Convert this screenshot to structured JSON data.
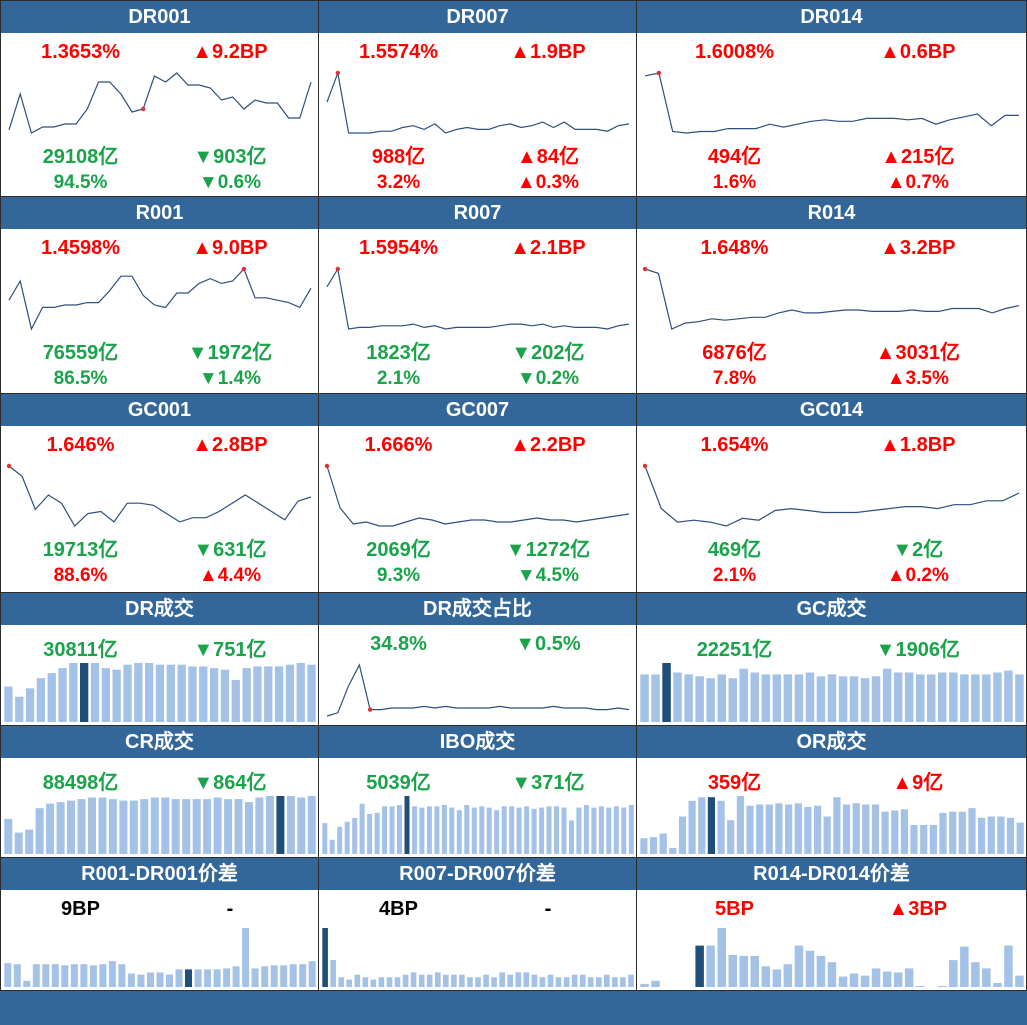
{
  "colors": {
    "header": "#336699",
    "up": "#ff0000",
    "down": "#1aa34a",
    "neutral": "#000000",
    "line": "#2f4f7f",
    "bar": "#a4c2e8",
    "bar_highlight": "#1f4e79",
    "marker": "#e03030"
  },
  "panels": [
    {
      "id": "dr001",
      "title": "DR001",
      "kind": "line",
      "highlight": 12,
      "rows": [
        [
          "1.3653%",
          "red",
          "▲9.2BP",
          "red"
        ],
        [
          "29108亿",
          "green",
          "▼903亿",
          "green"
        ],
        [
          "94.5%",
          "green",
          "▼0.6%",
          "green"
        ]
      ],
      "chart_data": {
        "type": "line",
        "values": [
          1.21,
          1.33,
          1.2,
          1.22,
          1.22,
          1.23,
          1.23,
          1.28,
          1.37,
          1.37,
          1.33,
          1.27,
          1.28,
          1.39,
          1.37,
          1.4,
          1.36,
          1.36,
          1.35,
          1.31,
          1.32,
          1.28,
          1.31,
          1.3,
          1.3,
          1.25,
          1.25,
          1.37
        ]
      }
    },
    {
      "id": "dr007",
      "title": "DR007",
      "kind": "line",
      "highlight": 1,
      "rows": [
        [
          "1.5574%",
          "red",
          "▲1.9BP",
          "red"
        ],
        [
          "988亿",
          "red",
          "▲84亿",
          "red"
        ],
        [
          "3.2%",
          "red",
          "▲0.3%",
          "red"
        ]
      ],
      "chart_data": {
        "type": "line",
        "values": [
          1.4,
          1.56,
          1.23,
          1.23,
          1.23,
          1.24,
          1.24,
          1.26,
          1.27,
          1.25,
          1.28,
          1.23,
          1.25,
          1.26,
          1.25,
          1.25,
          1.27,
          1.28,
          1.26,
          1.27,
          1.29,
          1.26,
          1.29,
          1.25,
          1.25,
          1.25,
          1.24,
          1.27,
          1.28
        ]
      }
    },
    {
      "id": "dr014",
      "title": "DR014",
      "kind": "line",
      "highlight": 1,
      "rows": [
        [
          "1.6008%",
          "red",
          "▲0.6BP",
          "red"
        ],
        [
          "494亿",
          "red",
          "▲215亿",
          "red"
        ],
        [
          "1.6%",
          "red",
          "▲0.7%",
          "red"
        ]
      ],
      "chart_data": {
        "type": "line",
        "values": [
          1.58,
          1.6,
          1.2,
          1.19,
          1.2,
          1.2,
          1.22,
          1.22,
          1.22,
          1.25,
          1.23,
          1.25,
          1.27,
          1.28,
          1.27,
          1.27,
          1.29,
          1.29,
          1.29,
          1.28,
          1.29,
          1.25,
          1.28,
          1.3,
          1.32,
          1.24,
          1.31,
          1.31
        ]
      }
    },
    {
      "id": "r001",
      "title": "R001",
      "kind": "line",
      "highlight": 21,
      "rows": [
        [
          "1.4598%",
          "red",
          "▲9.0BP",
          "red"
        ],
        [
          "76559亿",
          "green",
          "▼1972亿",
          "green"
        ],
        [
          "86.5%",
          "green",
          "▼1.4%",
          "green"
        ]
      ],
      "chart_data": {
        "type": "line",
        "values": [
          1.33,
          1.41,
          1.21,
          1.3,
          1.3,
          1.31,
          1.31,
          1.32,
          1.32,
          1.37,
          1.43,
          1.43,
          1.35,
          1.31,
          1.3,
          1.36,
          1.36,
          1.4,
          1.42,
          1.4,
          1.41,
          1.46,
          1.34,
          1.34,
          1.33,
          1.32,
          1.3,
          1.38
        ]
      }
    },
    {
      "id": "r007",
      "title": "R007",
      "kind": "line",
      "highlight": 1,
      "rows": [
        [
          "1.5954%",
          "red",
          "▲2.1BP",
          "red"
        ],
        [
          "1823亿",
          "green",
          "▼202亿",
          "green"
        ],
        [
          "2.1%",
          "green",
          "▼0.2%",
          "green"
        ]
      ],
      "chart_data": {
        "type": "line",
        "values": [
          1.49,
          1.6,
          1.23,
          1.24,
          1.24,
          1.25,
          1.25,
          1.25,
          1.26,
          1.24,
          1.25,
          1.23,
          1.24,
          1.24,
          1.24,
          1.24,
          1.25,
          1.26,
          1.26,
          1.25,
          1.26,
          1.24,
          1.25,
          1.24,
          1.24,
          1.24,
          1.23,
          1.25,
          1.26
        ]
      }
    },
    {
      "id": "r014",
      "title": "R014",
      "kind": "line",
      "highlight": 0,
      "rows": [
        [
          "1.648%",
          "red",
          "▲3.2BP",
          "red"
        ],
        [
          "6876亿",
          "red",
          "▲3031亿",
          "red"
        ],
        [
          "7.8%",
          "red",
          "▲3.5%",
          "red"
        ]
      ],
      "chart_data": {
        "type": "line",
        "values": [
          1.65,
          1.62,
          1.24,
          1.28,
          1.29,
          1.31,
          1.3,
          1.31,
          1.32,
          1.32,
          1.35,
          1.37,
          1.35,
          1.35,
          1.36,
          1.37,
          1.37,
          1.36,
          1.36,
          1.36,
          1.37,
          1.36,
          1.36,
          1.38,
          1.38,
          1.38,
          1.35,
          1.38,
          1.4
        ]
      }
    },
    {
      "id": "gc001",
      "title": "GC001",
      "kind": "line",
      "highlight": 0,
      "rows": [
        [
          "1.646%",
          "red",
          "▲2.8BP",
          "red"
        ],
        [
          "19713亿",
          "green",
          "▼631亿",
          "green"
        ],
        [
          "88.6%",
          "red",
          "▲4.4%",
          "red"
        ]
      ],
      "chart_data": {
        "type": "line",
        "values": [
          1.64,
          1.59,
          1.43,
          1.5,
          1.46,
          1.35,
          1.41,
          1.42,
          1.37,
          1.46,
          1.46,
          1.45,
          1.41,
          1.37,
          1.39,
          1.39,
          1.42,
          1.46,
          1.5,
          1.46,
          1.42,
          1.38,
          1.47,
          1.49
        ]
      }
    },
    {
      "id": "gc007",
      "title": "GC007",
      "kind": "line",
      "highlight": 0,
      "rows": [
        [
          "1.666%",
          "red",
          "▲2.2BP",
          "red"
        ],
        [
          "2069亿",
          "green",
          "▼1272亿",
          "green"
        ],
        [
          "9.3%",
          "green",
          "▼4.5%",
          "green"
        ]
      ],
      "chart_data": {
        "type": "line",
        "values": [
          1.67,
          1.46,
          1.38,
          1.39,
          1.37,
          1.37,
          1.39,
          1.41,
          1.4,
          1.38,
          1.39,
          1.4,
          1.4,
          1.39,
          1.39,
          1.4,
          1.41,
          1.4,
          1.4,
          1.39,
          1.4,
          1.41,
          1.42,
          1.43
        ]
      }
    },
    {
      "id": "gc014",
      "title": "GC014",
      "kind": "line",
      "highlight": 0,
      "rows": [
        [
          "1.654%",
          "red",
          "▲1.8BP",
          "red"
        ],
        [
          "469亿",
          "green",
          "▼2亿",
          "green"
        ],
        [
          "2.1%",
          "red",
          "▲0.2%",
          "red"
        ]
      ],
      "chart_data": {
        "type": "line",
        "values": [
          1.66,
          1.44,
          1.37,
          1.38,
          1.37,
          1.35,
          1.39,
          1.38,
          1.43,
          1.44,
          1.43,
          1.42,
          1.42,
          1.42,
          1.43,
          1.44,
          1.45,
          1.45,
          1.44,
          1.46,
          1.46,
          1.48,
          1.48,
          1.52
        ]
      }
    },
    {
      "id": "dr-vol",
      "title": "DR成交",
      "kind": "bar",
      "highlight": 7,
      "rows": [
        [
          "30811亿",
          "green",
          "▼751亿",
          "green"
        ]
      ],
      "chart_data": {
        "type": "bar",
        "values": [
          21,
          15,
          20,
          26,
          29,
          32,
          35,
          35,
          35,
          32,
          31,
          34,
          35,
          35,
          34,
          34,
          34,
          33,
          33,
          32,
          31,
          25,
          32,
          33,
          33,
          33,
          34,
          35,
          34
        ]
      }
    },
    {
      "id": "dr-ratio",
      "title": "DR成交占比",
      "kind": "line",
      "highlight": 4,
      "rows": [
        [
          "34.8%",
          "green",
          "▼0.5%",
          "green"
        ]
      ],
      "chart_data": {
        "type": "line",
        "values": [
          3,
          5,
          22,
          35,
          7,
          7,
          8,
          8,
          8,
          9,
          8,
          9,
          8,
          8,
          8,
          8,
          9,
          8,
          8,
          8,
          8,
          9,
          8,
          8,
          8,
          7,
          7,
          8,
          7
        ]
      }
    },
    {
      "id": "gc-vol",
      "title": "GC成交",
      "kind": "bar",
      "highlight": 2,
      "rows": [
        [
          "22251亿",
          "green",
          "▼1906亿",
          "green"
        ]
      ],
      "chart_data": {
        "type": "bar",
        "values": [
          25,
          25,
          31,
          26,
          25,
          24,
          23,
          25,
          23,
          28,
          26,
          25,
          25,
          25,
          25,
          26,
          24,
          25,
          24,
          24,
          23,
          24,
          28,
          26,
          26,
          25,
          25,
          26,
          26,
          25,
          25,
          25,
          26,
          27,
          25
        ]
      }
    },
    {
      "id": "cr-vol",
      "title": "CR成交",
      "kind": "bar",
      "highlight": 26,
      "rows": [
        [
          "88498亿",
          "green",
          "▼864亿",
          "green"
        ]
      ],
      "chart_data": {
        "type": "bar",
        "values": [
          23,
          14,
          16,
          30,
          33,
          34,
          35,
          36,
          37,
          37,
          36,
          35,
          35,
          36,
          37,
          37,
          36,
          36,
          36,
          36,
          37,
          36,
          36,
          34,
          37,
          38,
          38,
          38,
          37,
          38
        ]
      }
    },
    {
      "id": "ibo-vol",
      "title": "IBO成交",
      "kind": "bar",
      "highlight": 11,
      "rows": [
        [
          "5039亿",
          "green",
          "▼371亿",
          "green"
        ]
      ],
      "chart_data": {
        "type": "bar",
        "values": [
          24,
          11,
          21,
          25,
          28,
          39,
          31,
          32,
          37,
          37,
          38,
          45,
          37,
          36,
          37,
          37,
          38,
          36,
          34,
          38,
          36,
          37,
          36,
          34,
          37,
          37,
          36,
          37,
          35,
          36,
          37,
          37,
          36,
          26,
          36,
          38,
          36,
          37,
          36,
          37,
          36,
          38
        ]
      }
    },
    {
      "id": "or-vol",
      "title": "OR成交",
      "kind": "bar",
      "highlight": 7,
      "rows": [
        [
          "359亿",
          "red",
          "▲9亿",
          "red"
        ]
      ],
      "chart_data": {
        "type": "bar",
        "values": [
          13,
          14,
          17,
          5,
          31,
          44,
          47,
          47,
          44,
          28,
          48,
          40,
          41,
          41,
          42,
          41,
          42,
          39,
          40,
          31,
          47,
          41,
          42,
          41,
          41,
          35,
          36,
          37,
          24,
          24,
          24,
          34,
          35,
          35,
          38,
          30,
          31,
          31,
          30,
          26
        ]
      }
    },
    {
      "id": "r001-dr001",
      "title": "R001-DR001价差",
      "kind": "bar",
      "highlight": 19,
      "rows": [
        [
          "9BP",
          "black",
          "-",
          "black"
        ]
      ],
      "chart_data": {
        "type": "bar",
        "values": [
          23,
          22,
          6,
          22,
          22,
          22,
          21,
          22,
          22,
          21,
          22,
          25,
          22,
          13,
          12,
          14,
          14,
          12,
          17,
          17,
          17,
          17,
          17,
          18,
          20,
          57,
          18,
          20,
          21,
          21,
          22,
          22,
          25
        ]
      }
    },
    {
      "id": "r007-dr007",
      "title": "R007-DR007价差",
      "kind": "bar",
      "highlight": 0,
      "rows": [
        [
          "4BP",
          "black",
          "-",
          "black"
        ]
      ],
      "chart_data": {
        "type": "bar",
        "values": [
          24,
          11,
          4,
          3,
          5,
          4,
          3,
          4,
          4,
          4,
          5,
          6,
          5,
          5,
          6,
          5,
          5,
          5,
          4,
          4,
          5,
          4,
          6,
          5,
          6,
          6,
          5,
          4,
          5,
          4,
          4,
          5,
          5,
          4,
          4,
          5,
          4,
          4,
          5
        ]
      }
    },
    {
      "id": "r014-dr014",
      "title": "R014-DR014价差",
      "kind": "bar",
      "highlight": 5,
      "rows": [
        [
          "5BP",
          "red",
          "▲3BP",
          "red"
        ]
      ],
      "chart_data": {
        "type": "bar",
        "values": [
          3,
          6,
          0,
          0,
          0,
          40,
          40,
          57,
          31,
          30,
          30,
          20,
          17,
          22,
          40,
          35,
          30,
          24,
          10,
          13,
          11,
          18,
          15,
          14,
          18,
          1,
          0,
          1,
          26,
          39,
          24,
          18,
          4,
          40,
          11
        ]
      }
    }
  ]
}
